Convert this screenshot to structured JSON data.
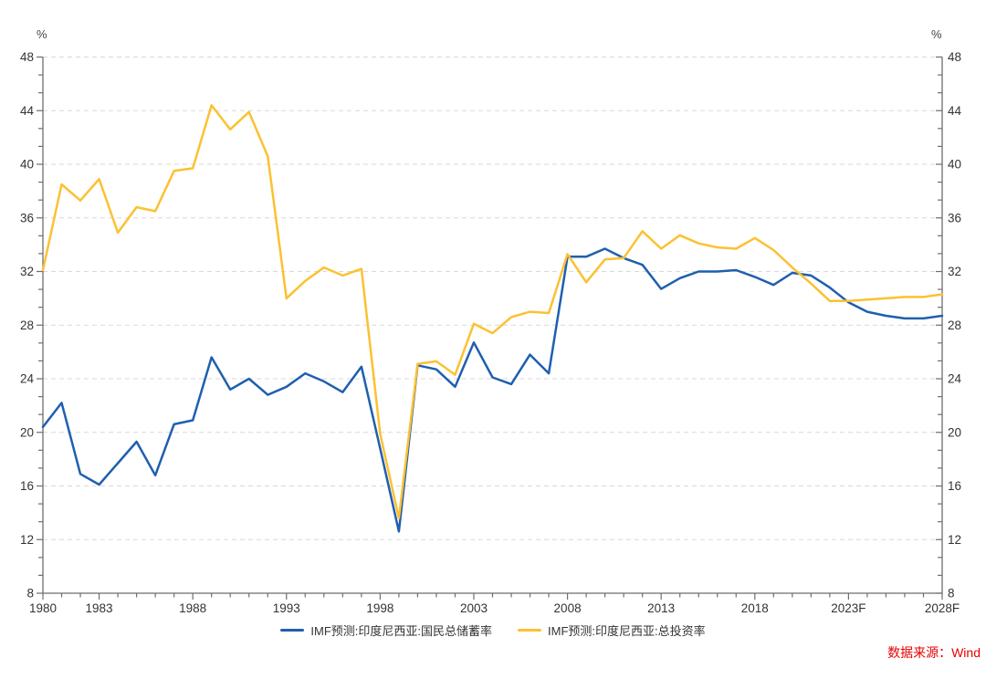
{
  "units": {
    "left": "%",
    "right": "%"
  },
  "source": {
    "text": "数据来源：Wind",
    "color": "#e60000"
  },
  "legend": {
    "items": [
      {
        "label": "IMF预测:印度尼西亚:国民总储蓄率",
        "color": "#1f5fae"
      },
      {
        "label": "IMF预测:印度尼西亚:总投资率",
        "color": "#fcc132"
      }
    ]
  },
  "chart_data": {
    "type": "line",
    "title": "",
    "xlabel": "",
    "ylabel_left": "%",
    "ylabel_right": "%",
    "ylim": [
      8,
      48
    ],
    "y_ticks": [
      8,
      12,
      16,
      20,
      24,
      28,
      32,
      36,
      40,
      44,
      48
    ],
    "grid": "horizontal-dashed",
    "legend_position": "bottom-center",
    "x": [
      1980,
      1981,
      1982,
      1983,
      1984,
      1985,
      1986,
      1987,
      1988,
      1989,
      1990,
      1991,
      1992,
      1993,
      1994,
      1995,
      1996,
      1997,
      1998,
      1999,
      2000,
      2001,
      2002,
      2003,
      2004,
      2005,
      2006,
      2007,
      2008,
      2009,
      2010,
      2011,
      2012,
      2013,
      2014,
      2015,
      2016,
      2017,
      2018,
      2019,
      2020,
      2021,
      2022,
      2023,
      2024,
      2025,
      2026,
      2027,
      2028
    ],
    "x_tick_labels": [
      {
        "year": 1980,
        "label": "1980"
      },
      {
        "year": 1983,
        "label": "1983"
      },
      {
        "year": 1988,
        "label": "1988"
      },
      {
        "year": 1993,
        "label": "1993"
      },
      {
        "year": 1998,
        "label": "1998"
      },
      {
        "year": 2003,
        "label": "2003"
      },
      {
        "year": 2008,
        "label": "2008"
      },
      {
        "year": 2013,
        "label": "2013"
      },
      {
        "year": 2018,
        "label": "2018"
      },
      {
        "year": 2023,
        "label": "2023F"
      },
      {
        "year": 2028,
        "label": "2028F"
      }
    ],
    "series": [
      {
        "name": "IMF预测:印度尼西亚:国民总储蓄率",
        "color": "#1f5fae",
        "values": [
          20.4,
          22.2,
          16.9,
          16.1,
          17.7,
          19.3,
          16.8,
          20.6,
          20.9,
          25.6,
          23.2,
          24.0,
          22.8,
          23.4,
          24.4,
          23.8,
          23.0,
          24.9,
          18.8,
          12.6,
          25.0,
          24.7,
          23.4,
          26.7,
          24.1,
          23.6,
          25.8,
          24.4,
          33.1,
          33.1,
          33.7,
          33.0,
          32.5,
          30.7,
          31.5,
          32.0,
          32.0,
          32.1,
          31.6,
          31.0,
          31.9,
          31.7,
          30.8,
          29.7,
          29.0,
          28.7,
          28.5,
          28.5,
          28.7
        ]
      },
      {
        "name": "IMF预测:印度尼西亚:总投资率",
        "color": "#fcc132",
        "values": [
          32.1,
          38.5,
          37.3,
          38.9,
          34.9,
          36.8,
          36.5,
          39.5,
          39.7,
          44.4,
          42.6,
          43.9,
          40.6,
          30.0,
          31.3,
          32.3,
          31.7,
          32.2,
          19.9,
          13.6,
          25.1,
          25.3,
          24.3,
          28.1,
          27.4,
          28.6,
          29.0,
          28.9,
          33.3,
          31.2,
          32.9,
          33.0,
          35.0,
          33.7,
          34.7,
          34.1,
          33.8,
          33.7,
          34.5,
          33.6,
          32.3,
          31.1,
          29.8,
          29.8,
          29.9,
          30.0,
          30.1,
          30.1,
          30.3
        ]
      }
    ],
    "axis_color": "#6e6e6e",
    "grid_color": "#d9d9d9",
    "label_color": "#333333"
  }
}
